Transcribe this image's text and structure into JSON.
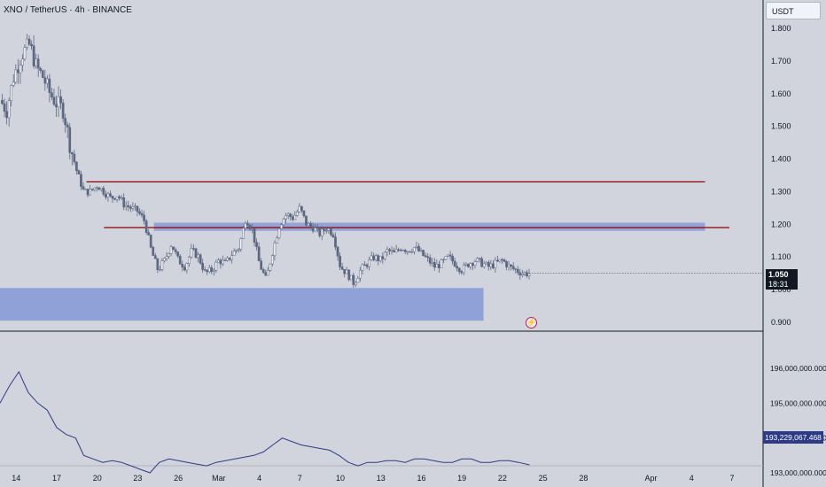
{
  "header": {
    "symbol_line": "XNO / TetherUS · 4h · BINANCE",
    "currency": "USDT"
  },
  "price_badge": {
    "value": "1.050",
    "countdown": "18:31"
  },
  "volume_badge": "193,229,067.468",
  "icons": {
    "alert": "lightning-bolt-icon"
  },
  "colors": {
    "background": "#d1d4dc",
    "candle": "#5d6782",
    "resistance_line": "#8b0000",
    "zone_fill": "#8093d6",
    "indicator_line": "#2f3a86"
  },
  "chart_data": [
    {
      "type": "candlestick",
      "title": "XNO / TetherUS · 4h · BINANCE",
      "ylim": [
        0.87,
        1.84
      ],
      "y_ticks": [
        "1.800",
        "1.700",
        "1.600",
        "1.500",
        "1.400",
        "1.300",
        "1.200",
        "1.100",
        "1.000",
        "0.900"
      ],
      "y_tick_values": [
        1.8,
        1.7,
        1.6,
        1.5,
        1.4,
        1.3,
        1.2,
        1.1,
        1.0,
        0.9
      ],
      "x_ticks": [
        "14",
        "17",
        "20",
        "23",
        "26",
        "Mar",
        "4",
        "7",
        "10",
        "13",
        "16",
        "19",
        "22",
        "25",
        "28",
        "Apr",
        "4",
        "7"
      ],
      "x_tick_days": [
        14,
        17,
        20,
        23,
        26,
        29,
        32,
        35,
        38,
        41,
        44,
        47,
        50,
        53,
        56,
        61,
        64,
        67
      ],
      "xlim_days": [
        12.8,
        69.3
      ],
      "close_path": [
        [
          12.8,
          1.58
        ],
        [
          13.3,
          1.55
        ],
        [
          13.8,
          1.65
        ],
        [
          14.4,
          1.72
        ],
        [
          15.0,
          1.75
        ],
        [
          15.5,
          1.68
        ],
        [
          16.0,
          1.65
        ],
        [
          16.5,
          1.6
        ],
        [
          17.0,
          1.57
        ],
        [
          17.5,
          1.55
        ],
        [
          18.0,
          1.44
        ],
        [
          18.5,
          1.36
        ],
        [
          19.0,
          1.3
        ],
        [
          19.5,
          1.3
        ],
        [
          20.0,
          1.32
        ],
        [
          20.5,
          1.3
        ],
        [
          21.0,
          1.28
        ],
        [
          21.5,
          1.29
        ],
        [
          22.0,
          1.26
        ],
        [
          22.5,
          1.25
        ],
        [
          23.0,
          1.24
        ],
        [
          23.5,
          1.21
        ],
        [
          24.0,
          1.12
        ],
        [
          24.5,
          1.06
        ],
        [
          25.0,
          1.09
        ],
        [
          25.5,
          1.14
        ],
        [
          26.0,
          1.09
        ],
        [
          26.5,
          1.07
        ],
        [
          27.0,
          1.12
        ],
        [
          27.5,
          1.1
        ],
        [
          28.0,
          1.05
        ],
        [
          28.5,
          1.06
        ],
        [
          29.0,
          1.09
        ],
        [
          29.5,
          1.08
        ],
        [
          30.0,
          1.11
        ],
        [
          30.5,
          1.13
        ],
        [
          31.0,
          1.22
        ],
        [
          31.5,
          1.18
        ],
        [
          32.0,
          1.08
        ],
        [
          32.5,
          1.03
        ],
        [
          33.0,
          1.12
        ],
        [
          33.5,
          1.2
        ],
        [
          34.0,
          1.23
        ],
        [
          34.5,
          1.22
        ],
        [
          35.0,
          1.25
        ],
        [
          35.5,
          1.2
        ],
        [
          36.0,
          1.19
        ],
        [
          36.5,
          1.17
        ],
        [
          37.0,
          1.19
        ],
        [
          37.5,
          1.17
        ],
        [
          38.0,
          1.07
        ],
        [
          38.5,
          1.05
        ],
        [
          39.0,
          1.02
        ],
        [
          39.5,
          1.06
        ],
        [
          40.0,
          1.08
        ],
        [
          40.5,
          1.1
        ],
        [
          41.0,
          1.09
        ],
        [
          41.5,
          1.12
        ],
        [
          42.0,
          1.11
        ],
        [
          42.5,
          1.13
        ],
        [
          43.0,
          1.12
        ],
        [
          43.5,
          1.13
        ],
        [
          44.0,
          1.11
        ],
        [
          44.5,
          1.09
        ],
        [
          45.0,
          1.07
        ],
        [
          45.5,
          1.08
        ],
        [
          46.0,
          1.1
        ],
        [
          46.5,
          1.08
        ],
        [
          47.0,
          1.06
        ],
        [
          47.5,
          1.08
        ],
        [
          48.0,
          1.09
        ],
        [
          48.5,
          1.08
        ],
        [
          49.0,
          1.07
        ],
        [
          49.5,
          1.08
        ],
        [
          50.0,
          1.09
        ],
        [
          50.5,
          1.07
        ],
        [
          51.0,
          1.06
        ],
        [
          51.5,
          1.05
        ],
        [
          52.0,
          1.05
        ]
      ],
      "resistance_lines": [
        {
          "y": 1.33,
          "x_start_day": 19.2,
          "x_end_day": 65.0
        },
        {
          "y": 1.19,
          "x_start_day": 20.5,
          "x_end_day": 66.8
        }
      ],
      "zones": [
        {
          "y_low": 1.18,
          "y_high": 1.205,
          "x_start_day": 24.2,
          "x_end_day": 65.0
        },
        {
          "y_low": 0.905,
          "y_high": 1.005,
          "x_start_day": 12.8,
          "x_end_day": 48.6
        }
      ],
      "last_price": 1.05
    },
    {
      "type": "line",
      "ylim": [
        192950000000,
        196380000000
      ],
      "y_ticks": [
        "196,000,000.000",
        "195,000,000.000",
        "194,000,000.000",
        "193,000,000.000"
      ],
      "y_tick_values": [
        196000000000,
        195000000000,
        194000000000,
        193000000000
      ],
      "x": [
        12.8,
        13.5,
        14.2,
        14.9,
        15.6,
        16.3,
        17.0,
        17.7,
        18.4,
        19.0,
        19.7,
        20.4,
        21.1,
        21.8,
        22.5,
        23.2,
        23.9,
        24.6,
        25.3,
        26.0,
        26.7,
        27.4,
        28.1,
        28.8,
        29.5,
        30.2,
        30.9,
        31.6,
        32.3,
        33.0,
        33.7,
        34.4,
        35.1,
        35.8,
        36.5,
        37.2,
        37.9,
        38.6,
        39.3,
        40.0,
        40.7,
        41.4,
        42.1,
        42.8,
        43.5,
        44.2,
        44.9,
        45.6,
        46.3,
        47.0,
        47.7,
        48.4,
        49.1,
        49.8,
        50.5,
        51.2,
        52.0
      ],
      "values": [
        195000000000,
        195500000000,
        195900000000,
        195300000000,
        195000000000,
        194800000000,
        194300000000,
        194100000000,
        194000000000,
        193500000000,
        193400000000,
        193300000000,
        193350000000,
        193300000000,
        193200000000,
        193100000000,
        193000000000,
        193300000000,
        193400000000,
        193350000000,
        193300000000,
        193250000000,
        193200000000,
        193300000000,
        193350000000,
        193400000000,
        193450000000,
        193500000000,
        193600000000,
        193800000000,
        194000000000,
        193900000000,
        193800000000,
        193750000000,
        193700000000,
        193650000000,
        193500000000,
        193300000000,
        193200000000,
        193300000000,
        193300000000,
        193350000000,
        193350000000,
        193300000000,
        193400000000,
        193400000000,
        193350000000,
        193300000000,
        193300000000,
        193400000000,
        193400000000,
        193300000000,
        193300000000,
        193350000000,
        193350000000,
        193300000000,
        193229067468
      ],
      "last_value": 193229067468
    }
  ]
}
